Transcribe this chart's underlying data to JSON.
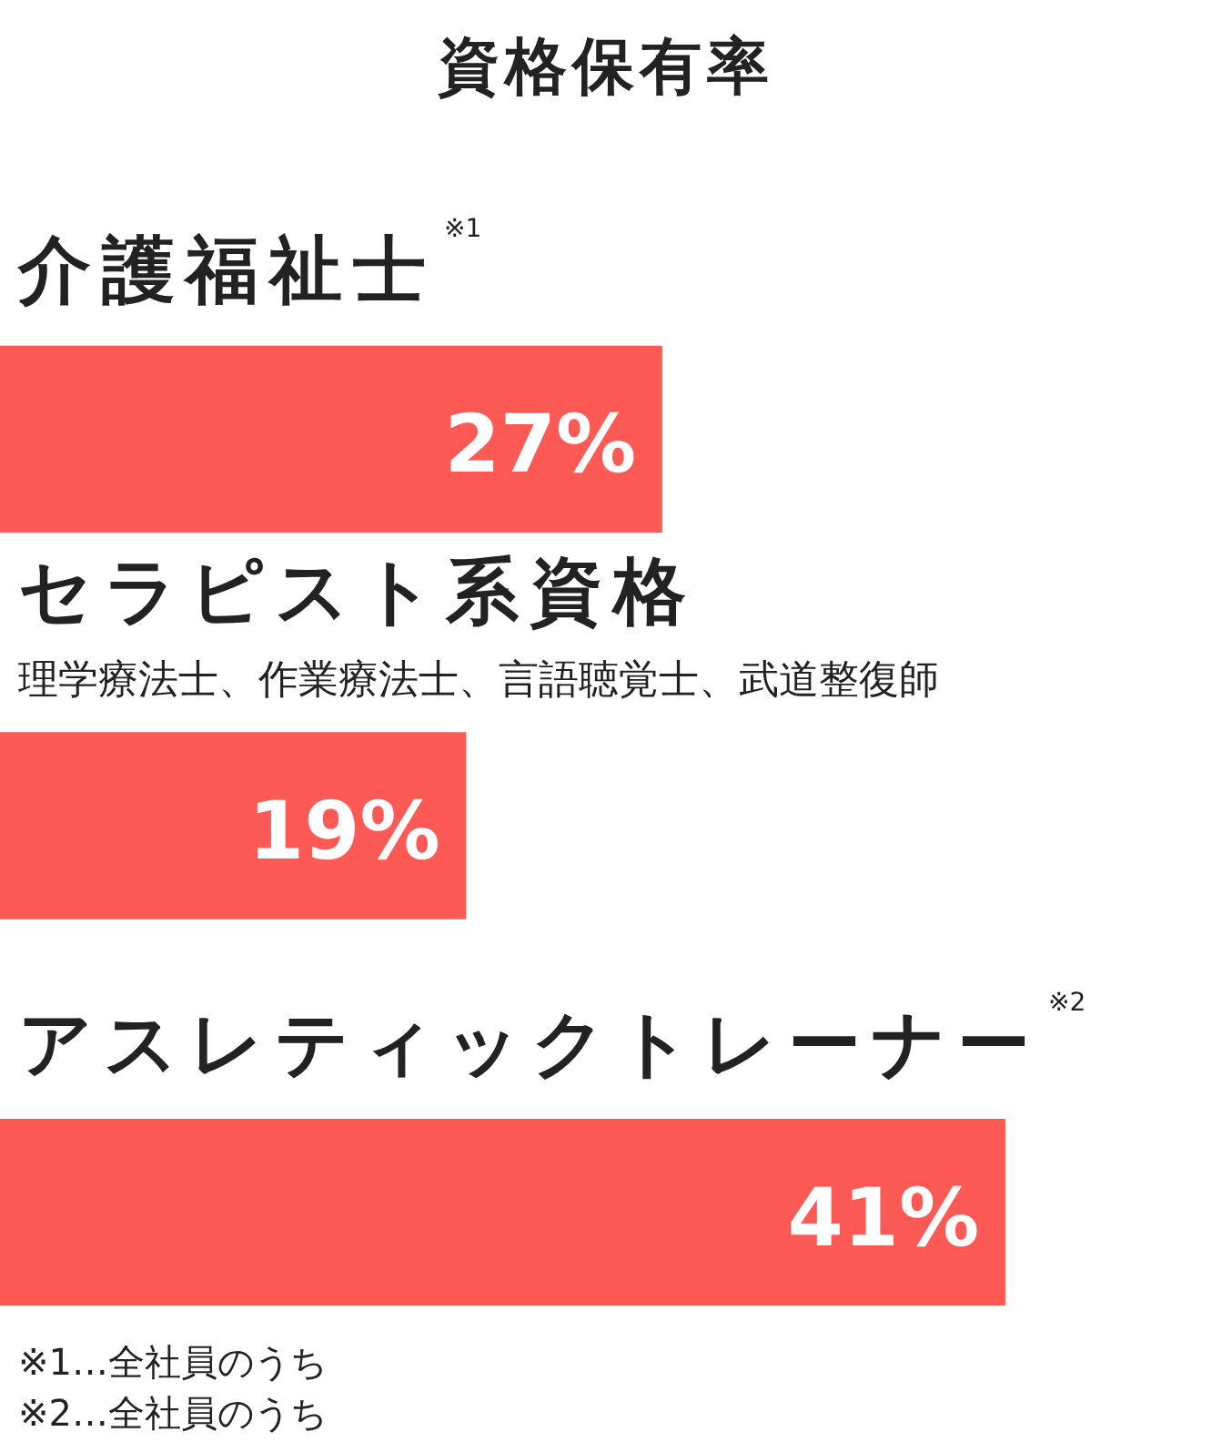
{
  "chart_data": {
    "type": "bar",
    "orientation": "horizontal",
    "title": "資格保有率",
    "categories": [
      "介護福祉士$^{※1}$",
      "セラピスト系資格",
      "アスレティックトレーナー$^{※2}$"
    ],
    "values": [
      27,
      19,
      41
    ],
    "tick_labels": false,
    "value_labels": [
      "27%",
      "19%",
      "41%"
    ],
    "color": "#fd5a55",
    "annotations": [
      "理学療法士、作業療法士、言語聴覚士、武道整復師",
      "※1…全社員のうち",
      "※2…全社員のうち"
    ]
  }
}
